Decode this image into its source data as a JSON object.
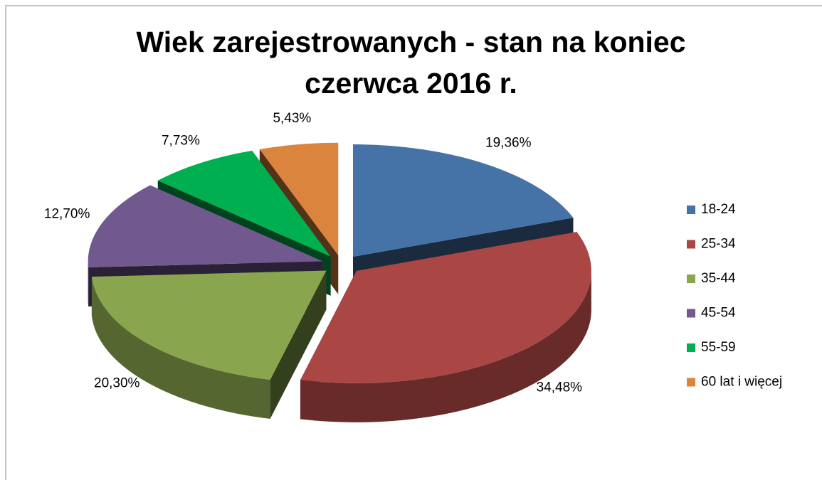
{
  "chart_data": {
    "type": "pie",
    "title": "Wiek zarejestrowanych - stan na koniec czerwca 2016 r.",
    "categories": [
      "18-24",
      "25-34",
      "35-44",
      "45-54",
      "55-59",
      "60 lat i więcej"
    ],
    "values": [
      19.36,
      34.48,
      20.3,
      12.7,
      7.73,
      5.43
    ],
    "value_labels": [
      "19,36%",
      "34,48%",
      "20,30%",
      "12,70%",
      "7,73%",
      "5,43%"
    ],
    "colors": [
      "#4572a7",
      "#aa4643",
      "#89a54e",
      "#71588f",
      "#00b050",
      "#db843d"
    ],
    "legend": "right"
  }
}
